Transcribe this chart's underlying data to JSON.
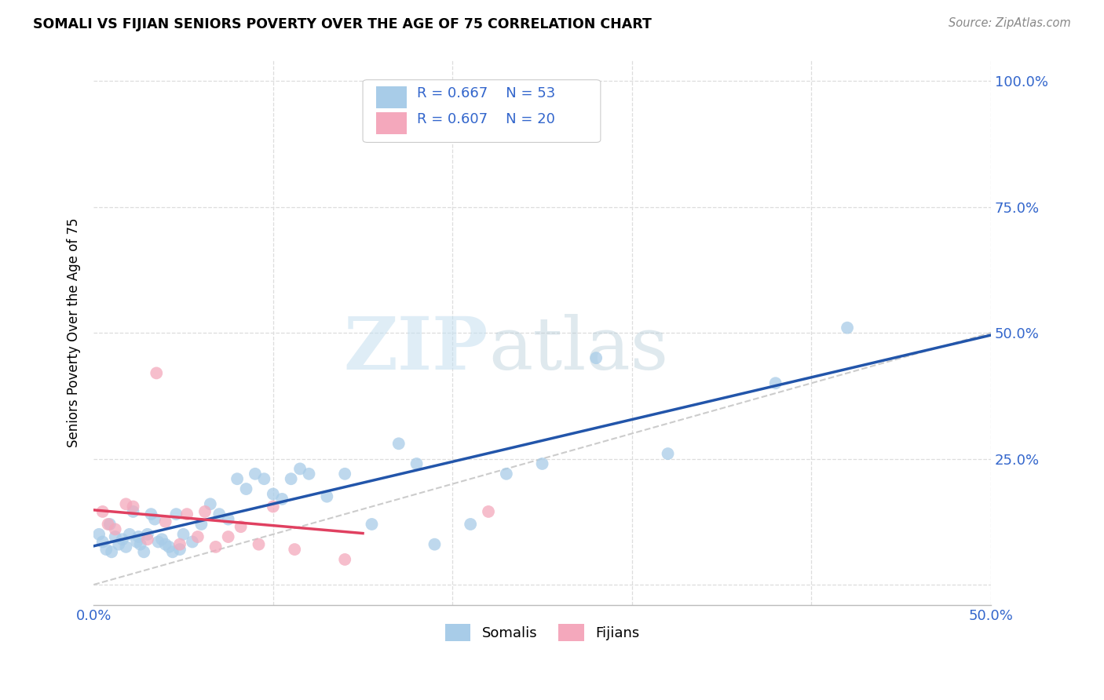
{
  "title": "SOMALI VS FIJIAN SENIORS POVERTY OVER THE AGE OF 75 CORRELATION CHART",
  "source": "Source: ZipAtlas.com",
  "ylabel": "Seniors Poverty Over the Age of 75",
  "xlim": [
    0.0,
    0.5
  ],
  "ylim": [
    -0.04,
    1.04
  ],
  "somali_R": 0.667,
  "somali_N": 53,
  "fijian_R": 0.607,
  "fijian_N": 20,
  "somali_color": "#a8cce8",
  "fijian_color": "#f4a8bc",
  "somali_line_color": "#2255aa",
  "fijian_line_color": "#e04060",
  "diagonal_color": "#cccccc",
  "legend_text_color": "#3366cc",
  "background_color": "#ffffff",
  "grid_color": "#dddddd",
  "somali_x": [
    0.003,
    0.005,
    0.007,
    0.009,
    0.01,
    0.012,
    0.014,
    0.016,
    0.018,
    0.02,
    0.022,
    0.024,
    0.025,
    0.026,
    0.028,
    0.03,
    0.032,
    0.034,
    0.036,
    0.038,
    0.04,
    0.042,
    0.044,
    0.046,
    0.048,
    0.05,
    0.055,
    0.06,
    0.065,
    0.07,
    0.075,
    0.08,
    0.085,
    0.09,
    0.095,
    0.1,
    0.105,
    0.11,
    0.115,
    0.12,
    0.13,
    0.14,
    0.155,
    0.17,
    0.18,
    0.19,
    0.21,
    0.23,
    0.25,
    0.28,
    0.32,
    0.38,
    0.42
  ],
  "somali_y": [
    0.1,
    0.085,
    0.07,
    0.12,
    0.065,
    0.095,
    0.08,
    0.09,
    0.075,
    0.1,
    0.145,
    0.085,
    0.095,
    0.08,
    0.065,
    0.1,
    0.14,
    0.13,
    0.085,
    0.09,
    0.08,
    0.075,
    0.065,
    0.14,
    0.07,
    0.1,
    0.085,
    0.12,
    0.16,
    0.14,
    0.13,
    0.21,
    0.19,
    0.22,
    0.21,
    0.18,
    0.17,
    0.21,
    0.23,
    0.22,
    0.175,
    0.22,
    0.12,
    0.28,
    0.24,
    0.08,
    0.12,
    0.22,
    0.24,
    0.45,
    0.26,
    0.4,
    0.51
  ],
  "fijian_x": [
    0.005,
    0.008,
    0.012,
    0.018,
    0.022,
    0.03,
    0.035,
    0.04,
    0.048,
    0.052,
    0.058,
    0.062,
    0.068,
    0.075,
    0.082,
    0.092,
    0.1,
    0.112,
    0.14,
    0.22
  ],
  "fijian_y": [
    0.145,
    0.12,
    0.11,
    0.16,
    0.155,
    0.09,
    0.42,
    0.125,
    0.08,
    0.14,
    0.095,
    0.145,
    0.075,
    0.095,
    0.115,
    0.08,
    0.155,
    0.07,
    0.05,
    0.145
  ]
}
